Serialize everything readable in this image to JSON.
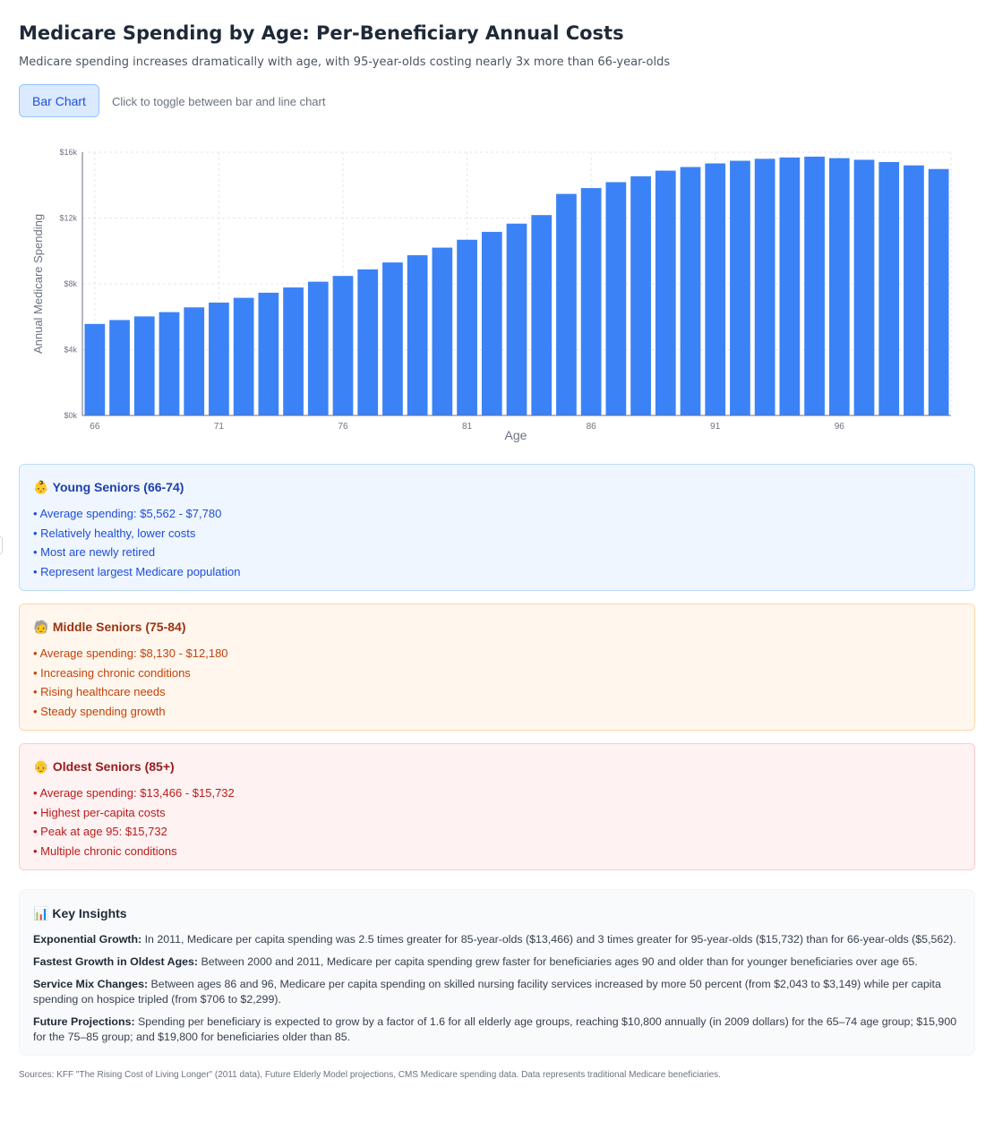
{
  "header": {
    "title": "Medicare Spending by Age: Per-Beneficiary Annual Costs",
    "subtitle": "Medicare spending increases dramatically with age, with 95-year-olds costing nearly 3x more than 66-year-olds"
  },
  "toggle": {
    "label": "Bar Chart",
    "hint": "Click to toggle between bar and line chart"
  },
  "colors": {
    "bar": "#3b82f6",
    "grid": "#e5e7eb",
    "axis": "#6b7280"
  },
  "chart_data": {
    "type": "bar",
    "categories": [
      "66",
      "67",
      "68",
      "69",
      "70",
      "71",
      "72",
      "73",
      "74",
      "75",
      "76",
      "77",
      "78",
      "79",
      "80",
      "81",
      "82",
      "83",
      "84",
      "85",
      "86",
      "87",
      "88",
      "89",
      "90",
      "91",
      "92",
      "93",
      "94",
      "95",
      "96",
      "97",
      "98",
      "99",
      "100"
    ],
    "values": [
      5562,
      5800,
      6020,
      6280,
      6570,
      6860,
      7150,
      7460,
      7780,
      8130,
      8480,
      8880,
      9300,
      9740,
      10200,
      10680,
      11160,
      11660,
      12180,
      13466,
      13820,
      14180,
      14540,
      14880,
      15100,
      15320,
      15480,
      15600,
      15680,
      15732,
      15640,
      15540,
      15400,
      15200,
      14980
    ],
    "xlabel": "Age",
    "ylabel": "Annual Medicare Spending",
    "ylim": [
      0,
      16000
    ],
    "yticks": [
      0,
      4000,
      8000,
      12000,
      16000
    ],
    "ytick_labels": [
      "$0k",
      "$4k",
      "$8k",
      "$12k",
      "$16k"
    ],
    "xtick_labels": [
      "66",
      "71",
      "76",
      "81",
      "86",
      "91",
      "96"
    ],
    "grid": true
  },
  "groups": [
    {
      "icon": "baby-icon",
      "emoji": "👶",
      "title": "Young Seniors (66-74)",
      "items": [
        "• Average spending: $5,562 - $7,780",
        "• Relatively healthy, lower costs",
        "• Most are newly retired",
        "• Represent largest Medicare population"
      ]
    },
    {
      "icon": "older-adult-icon",
      "emoji": "🧓",
      "title": "Middle Seniors (75-84)",
      "items": [
        "• Average spending: $8,130 - $12,180",
        "• Increasing chronic conditions",
        "• Rising healthcare needs",
        "• Steady spending growth"
      ]
    },
    {
      "icon": "old-man-icon",
      "emoji": "👴",
      "title": "Oldest Seniors (85+)",
      "items": [
        "• Average spending: $13,466 - $15,732",
        "• Highest per-capita costs",
        "• Peak at age 95: $15,732",
        "• Multiple chronic conditions"
      ]
    }
  ],
  "insights": {
    "icon": "bar-chart-icon",
    "emoji": "📊",
    "title": "Key Insights",
    "items": [
      {
        "label": "Exponential Growth:",
        "text": " In 2011, Medicare per capita spending was 2.5 times greater for 85-year-olds ($13,466) and 3 times greater for 95-year-olds ($15,732) than for 66-year-olds ($5,562)."
      },
      {
        "label": "Fastest Growth in Oldest Ages:",
        "text": " Between 2000 and 2011, Medicare per capita spending grew faster for beneficiaries ages 90 and older than for younger beneficiaries over age 65."
      },
      {
        "label": "Service Mix Changes:",
        "text": " Between ages 86 and 96, Medicare per capita spending on skilled nursing facility services increased by more 50 percent (from $2,043 to $3,149) while per capita spending on hospice tripled (from $706 to $2,299)."
      },
      {
        "label": "Future Projections:",
        "text": " Spending per beneficiary is expected to grow by a factor of 1.6 for all elderly age groups, reaching $10,800 annually (in 2009 dollars) for the 65–74 age group; $15,900 for the 75–85 group; and $19,800 for beneficiaries older than 85."
      }
    ]
  },
  "sources": "Sources: KFF \"The Rising Cost of Living Longer\" (2011 data), Future Elderly Model projections, CMS Medicare spending data. Data represents traditional Medicare beneficiaries."
}
